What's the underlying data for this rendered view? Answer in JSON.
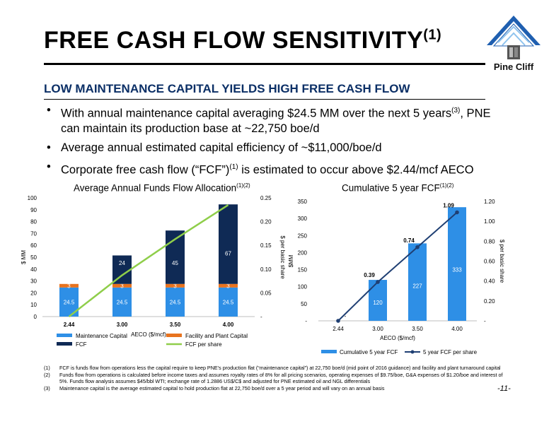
{
  "header": {
    "title": "FREE CASH FLOW SENSITIVITY",
    "title_sup": "(1)",
    "logo_text": "Pine Cliff"
  },
  "subtitle": "LOW MAINTENANCE CAPITAL YIELDS HIGH FREE CASH FLOW",
  "bullets": [
    {
      "pre": "With annual maintenance capital averaging $24.5 MM over the next 5 years",
      "sup": "(3)",
      "post": ", PNE can maintain its production base at ~22,750 boe/d"
    },
    {
      "pre": "Average annual estimated capital efficiency of ~$11,000/boe/d",
      "sup": "",
      "post": ""
    },
    {
      "pre": "Corporate free cash flow (“FCF”)",
      "sup": "(1)",
      "post": " is estimated to occur above $2.44/mcf AECO"
    }
  ],
  "colors": {
    "maintenance": "#2e8fe6",
    "facility": "#e8731f",
    "fcf": "#0f2a55",
    "fcf_share": "#8fce4a",
    "cum_fcf": "#2e8fe6",
    "cum_line": "#1f3f73"
  },
  "chart_data": [
    {
      "type": "bar",
      "title": "Average Annual Funds Flow Allocation",
      "title_sup": "(1)(2)",
      "categories": [
        "2.44",
        "3.00",
        "3.50",
        "4.00"
      ],
      "xlabel": "AECO ($/mcf)",
      "ylabel": "$ MM",
      "y2label": "$ per basic share",
      "ylim": [
        0,
        100
      ],
      "y2lim": [
        0,
        0.25
      ],
      "yticks": [
        "0",
        "10",
        "20",
        "30",
        "40",
        "50",
        "60",
        "70",
        "80",
        "90",
        "100"
      ],
      "y2ticks": [
        "-",
        "0.05",
        "0.10",
        "0.15",
        "0.20",
        "0.25"
      ],
      "stacked": true,
      "series": [
        {
          "name": "Maintenance Capital",
          "values": [
            24.5,
            24.5,
            24.5,
            24.5
          ],
          "labels": [
            "24.5",
            "24.5",
            "24.5",
            "24.5"
          ]
        },
        {
          "name": "Facility and Plant Capital",
          "values": [
            3,
            3,
            3,
            3
          ],
          "labels": [
            "3",
            "3",
            "3",
            "3"
          ]
        },
        {
          "name": "FCF",
          "values": [
            0,
            24,
            45,
            67
          ],
          "labels": [
            "",
            "24",
            "45",
            "67"
          ]
        },
        {
          "name": "FCF per share",
          "type": "line",
          "axis": "secondary",
          "values": [
            0,
            0.087,
            0.163,
            0.235
          ]
        }
      ],
      "legend": "bottom"
    },
    {
      "type": "bar",
      "title": "Cumulative 5 year FCF",
      "title_sup": "(1)(2)",
      "categories": [
        "2.44",
        "3.00",
        "3.50",
        "4.00"
      ],
      "xlabel": "AECO ($/mcf)",
      "ylabel": "$MM",
      "y2label": "$ per basic share",
      "ylim": [
        0,
        350
      ],
      "y2lim": [
        0,
        1.2
      ],
      "yticks": [
        "-",
        "50",
        "100",
        "150",
        "200",
        "250",
        "300",
        "350"
      ],
      "y2ticks": [
        "-",
        "0.20",
        "0.40",
        "0.60",
        "0.80",
        "1.00",
        "1.20"
      ],
      "series": [
        {
          "name": "Cumulative 5 year FCF",
          "values": [
            0,
            120,
            227,
            333
          ],
          "labels": [
            "-",
            "120",
            "227",
            "333"
          ]
        },
        {
          "name": "5 year FCF per share",
          "type": "line",
          "axis": "secondary",
          "values": [
            0,
            0.39,
            0.74,
            1.09
          ],
          "labels": [
            "-",
            "0.39",
            "0.74",
            "1.09"
          ]
        }
      ],
      "legend": "bottom"
    }
  ],
  "footnotes": [
    {
      "num": "(1)",
      "text": "FCF is funds flow from operations less the capital require to keep PNE’s production flat (“maintenance capital”) at 22,750 boe/d (mid point of 2016 guidance) and facility and plant turnaround capital"
    },
    {
      "num": "(2)",
      "text": "Funds flow from operations is calculated before income taxes and assumes royalty rates of 8% for all pricing scenarios, operating expenses of $9.75/boe, G&A expenses of $1.20/boe and interest of 5%. Funds flow analysis assumes $45/bbl WTI; exchange rate of 1.2886 US$/C$ and adjusted for PNE estimated oil and NGL differentials"
    },
    {
      "num": "(3)",
      "text": "Maintenance capital is the average estimated capital to hold production flat at 22,750 boe/d over a 5 year period and will vary on an annual basis"
    }
  ],
  "page_number": "-11-"
}
